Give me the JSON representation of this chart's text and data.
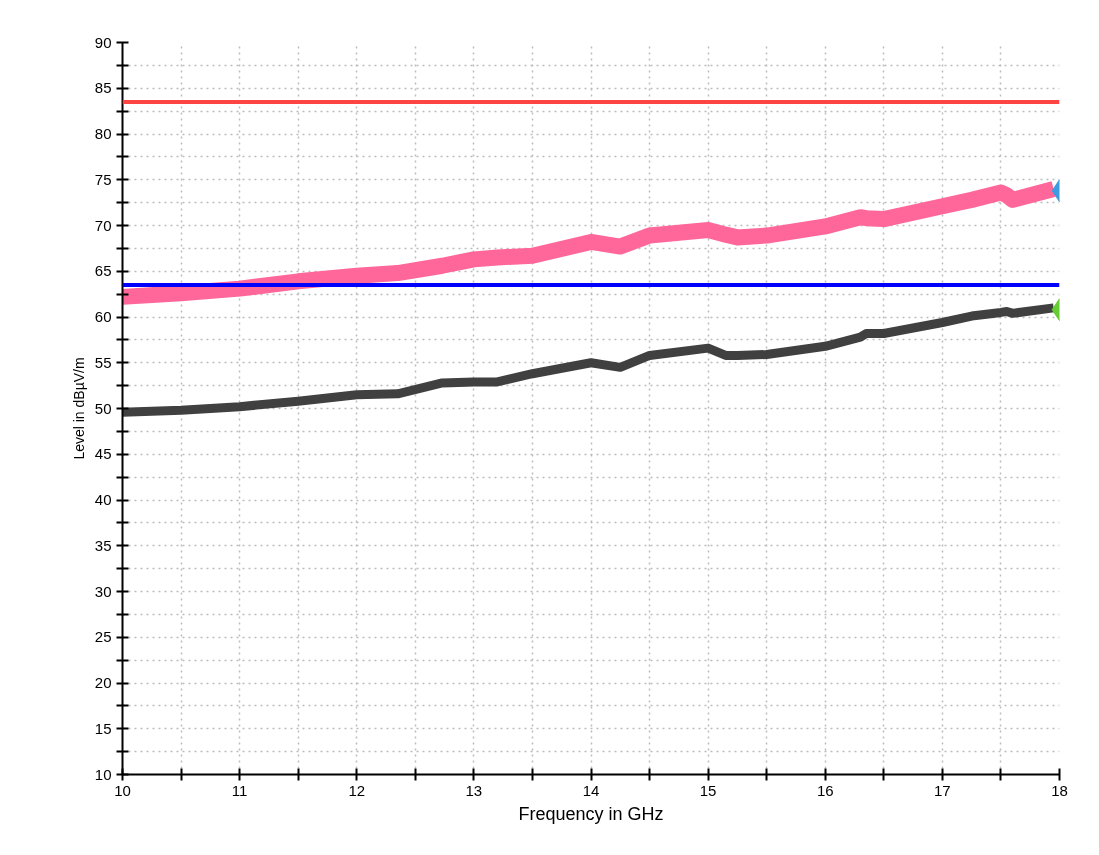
{
  "chart_data": {
    "type": "line",
    "xlabel": "Frequency in GHz",
    "ylabel": "Level in dBµV/m",
    "xlim": [
      10,
      18
    ],
    "ylim": [
      10,
      90
    ],
    "xticks": [
      10,
      {
        "value": 10.5,
        "label": null
      },
      11,
      {
        "value": 11.5,
        "label": null
      },
      12,
      {
        "value": 12.5,
        "label": null
      },
      13,
      {
        "value": 13.5,
        "label": null
      },
      14,
      {
        "value": 14.5,
        "label": null
      },
      15,
      {
        "value": 15.5,
        "label": null
      },
      16,
      {
        "value": 16.5,
        "label": null
      },
      17,
      {
        "value": 17.5,
        "label": null
      },
      18
    ],
    "yticks": [
      10,
      {
        "value": 12.5,
        "label": null
      },
      15,
      {
        "value": 17.5,
        "label": null
      },
      20,
      {
        "value": 22.5,
        "label": null
      },
      25,
      {
        "value": 27.5,
        "label": null
      },
      30,
      {
        "value": 32.5,
        "label": null
      },
      35,
      {
        "value": 37.5,
        "label": null
      },
      40,
      {
        "value": 42.5,
        "label": null
      },
      45,
      {
        "value": 47.5,
        "label": null
      },
      50,
      {
        "value": 52.5,
        "label": null
      },
      55,
      {
        "value": 57.5,
        "label": null
      },
      60,
      {
        "value": 62.5,
        "label": null
      },
      65,
      {
        "value": 67.5,
        "label": null
      },
      70,
      {
        "value": 72.5,
        "label": null
      },
      75,
      {
        "value": 77.5,
        "label": null
      },
      80,
      {
        "value": 82.5,
        "label": null
      },
      85,
      {
        "value": 87.5,
        "label": null
      },
      90
    ],
    "grid": true,
    "line_style": "solid",
    "marker": "none",
    "x": [
      10,
      10.5,
      11,
      11.5,
      12,
      12.35,
      12.73,
      13.0,
      13.2,
      13.5,
      14.0,
      14.25,
      14.5,
      15.0,
      15.15,
      15.25,
      15.5,
      16.0,
      16.3,
      16.35,
      16.5,
      17.0,
      17.25,
      17.5,
      17.55,
      17.6,
      17.95
    ],
    "series": [
      {
        "color": "#ff6699",
        "values": [
          62.2,
          62.6,
          63.1,
          63.9,
          64.5,
          64.8,
          65.6,
          66.3,
          66.5,
          66.7,
          68.2,
          67.7,
          68.9,
          69.5,
          69.0,
          68.7,
          68.9,
          69.9,
          70.9,
          70.8,
          70.7,
          72.1,
          72.8,
          73.6,
          73.3,
          72.8,
          74.0
        ]
      },
      {
        "color": "#404040",
        "values": [
          49.6,
          49.8,
          50.2,
          50.8,
          51.5,
          51.6,
          52.8,
          52.9,
          52.9,
          53.8,
          55.0,
          54.5,
          55.8,
          56.6,
          55.8,
          55.8,
          55.9,
          56.8,
          57.8,
          58.2,
          58.2,
          59.4,
          60.1,
          60.5,
          60.6,
          60.4,
          61.0
        ]
      },
      {
        "type": "scatter",
        "marker": "diamond",
        "color": "#3d9be0",
        "x": [
          18
        ],
        "values": [
          73.8
        ]
      },
      {
        "type": "scatter",
        "marker": "diamond",
        "color": "#66cc33",
        "x": [
          18
        ],
        "values": [
          60.8
        ]
      }
    ],
    "ref_lines": [
      {
        "axis": "y",
        "value": 83.5,
        "label": null,
        "color": "#ff4444"
      },
      {
        "axis": "y",
        "value": 63.5,
        "label": null,
        "color": "#0000ff"
      }
    ]
  }
}
